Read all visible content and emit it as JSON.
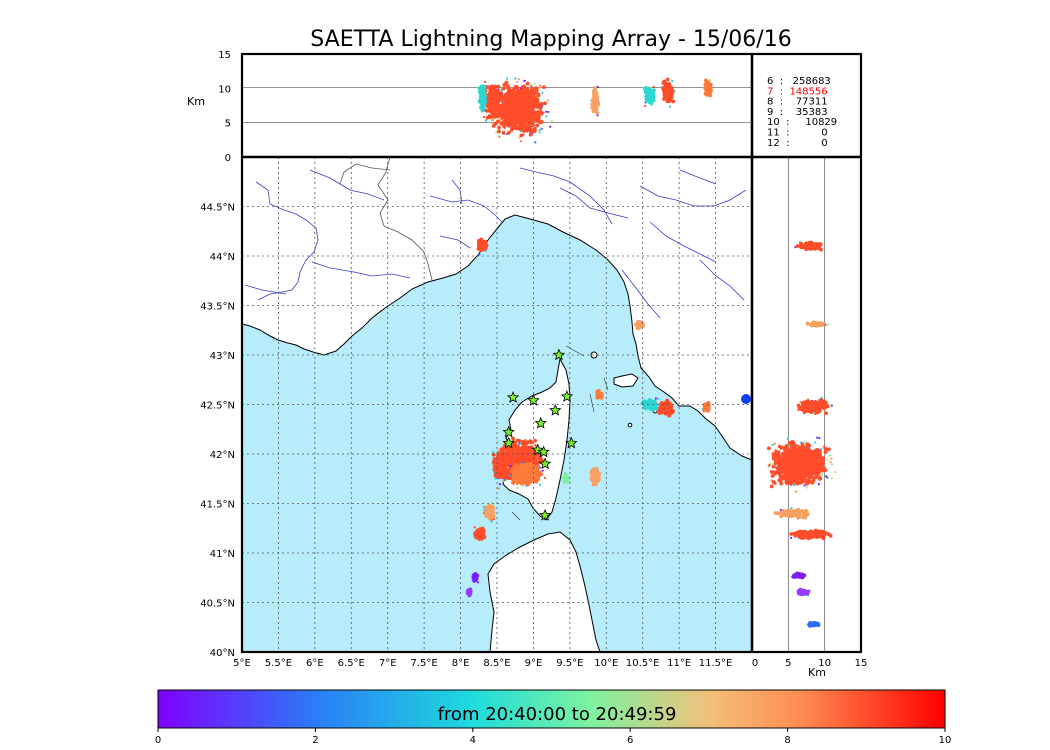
{
  "chart_data": {
    "type": "scatter",
    "title": "SAETTA Lightning Mapping Array - 15/06/16",
    "colors": {
      "sea": "#b7ecfb",
      "land": "#ffffff",
      "rivers": "#3a3ad6",
      "borders": "#555555",
      "grid": "#555555",
      "star_fill": "#7bf02a",
      "count_highlight": "#ff0000"
    },
    "map": {
      "x_ticks": [
        "5°E",
        "5.5°E",
        "6°E",
        "6.5°E",
        "7°E",
        "7.5°E",
        "8°E",
        "8.5°E",
        "9°E",
        "9.5°E",
        "10°E",
        "10.5°E",
        "11°E",
        "11.5°E"
      ],
      "y_ticks": [
        "40°N",
        "40.5°N",
        "41°N",
        "41.5°N",
        "42°N",
        "42.5°N",
        "43°N",
        "43.5°N",
        "44°N",
        "44.5°N"
      ],
      "lon_range": [
        5,
        12
      ],
      "lat_range": [
        40,
        45
      ],
      "grid": true,
      "station_marker": "star-icon",
      "stations": [
        {
          "lon": 9.35,
          "lat": 43.0
        },
        {
          "lon": 8.72,
          "lat": 42.57
        },
        {
          "lon": 9.0,
          "lat": 42.54
        },
        {
          "lon": 9.46,
          "lat": 42.58
        },
        {
          "lon": 9.1,
          "lat": 42.31
        },
        {
          "lon": 9.3,
          "lat": 42.44
        },
        {
          "lon": 8.66,
          "lat": 42.22
        },
        {
          "lon": 9.52,
          "lat": 42.11
        },
        {
          "lon": 8.66,
          "lat": 42.11
        },
        {
          "lon": 9.06,
          "lat": 42.04
        },
        {
          "lon": 9.14,
          "lat": 42.02
        },
        {
          "lon": 9.16,
          "lat": 41.9
        },
        {
          "lon": 9.16,
          "lat": 41.38
        }
      ],
      "clusters": [
        {
          "lon": 8.8,
          "lat": 41.93,
          "dlon": 0.35,
          "dlat": 0.24,
          "color": "#ff4c2a"
        },
        {
          "lon": 8.55,
          "lat": 41.87,
          "dlon": 0.12,
          "dlat": 0.15,
          "color": "#ff4c2a"
        },
        {
          "lon": 8.9,
          "lat": 41.8,
          "dlon": 0.25,
          "dlat": 0.12,
          "color": "#ff7a3a"
        },
        {
          "lon": 8.3,
          "lat": 44.1,
          "dlon": 0.08,
          "dlat": 0.08,
          "color": "#ff4c2a"
        },
        {
          "lon": 10.82,
          "lat": 42.46,
          "dlon": 0.12,
          "dlat": 0.09,
          "color": "#ff4c2a"
        },
        {
          "lon": 10.6,
          "lat": 42.5,
          "dlon": 0.12,
          "dlat": 0.06,
          "color": "#2dd6d0"
        },
        {
          "lon": 11.38,
          "lat": 42.47,
          "dlon": 0.06,
          "dlat": 0.05,
          "color": "#ff7a3a"
        },
        {
          "lon": 9.85,
          "lat": 41.77,
          "dlon": 0.07,
          "dlat": 0.1,
          "color": "#f7a060"
        },
        {
          "lon": 8.4,
          "lat": 41.41,
          "dlon": 0.08,
          "dlat": 0.09,
          "color": "#f7a060"
        },
        {
          "lon": 8.27,
          "lat": 41.19,
          "dlon": 0.08,
          "dlat": 0.08,
          "color": "#ff4c2a"
        },
        {
          "lon": 10.45,
          "lat": 43.31,
          "dlon": 0.07,
          "dlat": 0.05,
          "color": "#f7a060"
        },
        {
          "lon": 8.2,
          "lat": 40.75,
          "dlon": 0.04,
          "dlat": 0.05,
          "color": "#7a1eff"
        },
        {
          "lon": 8.12,
          "lat": 40.6,
          "dlon": 0.03,
          "dlat": 0.04,
          "color": "#9a3aff"
        },
        {
          "lon": 9.9,
          "lat": 42.6,
          "dlon": 0.05,
          "dlat": 0.05,
          "color": "#ff7a3a"
        },
        {
          "lon": 9.45,
          "lat": 41.75,
          "dlon": 0.05,
          "dlat": 0.05,
          "color": "#7ef2a0"
        }
      ]
    },
    "alt_lon": {
      "ylabel": "Km",
      "y_ticks": [
        "0",
        "5",
        "10",
        "15"
      ],
      "y_range": [
        0,
        15
      ],
      "clusters": [
        {
          "lon": 8.8,
          "alt": 7.0,
          "dlon": 0.42,
          "dalt": 4.5,
          "color": "#ff4c2a"
        },
        {
          "lon": 8.45,
          "alt": 8.0,
          "dlon": 0.12,
          "dalt": 3.0,
          "color": "#ff4c2a"
        },
        {
          "lon": 9.85,
          "alt": 8.0,
          "dlon": 0.05,
          "dalt": 2.5,
          "color": "#f7a060"
        },
        {
          "lon": 10.85,
          "alt": 9.5,
          "dlon": 0.1,
          "dalt": 2.0,
          "color": "#ff4c2a"
        },
        {
          "lon": 10.6,
          "alt": 9.0,
          "dlon": 0.08,
          "dalt": 1.5,
          "color": "#2dd6d0"
        },
        {
          "lon": 11.4,
          "alt": 10.0,
          "dlon": 0.06,
          "dalt": 1.5,
          "color": "#ff7a3a"
        },
        {
          "lon": 8.3,
          "alt": 8.5,
          "dlon": 0.05,
          "dalt": 2.5,
          "color": "#2dd6d0"
        }
      ]
    },
    "lat_alt": {
      "xlabel": "Km",
      "x_ticks": [
        "0",
        "5",
        "10",
        "15"
      ],
      "x_range": [
        0,
        15
      ],
      "clusters": [
        {
          "lat": 41.9,
          "alt": 6.5,
          "dlat": 0.25,
          "dalt": 4.5,
          "color": "#ff4c2a"
        },
        {
          "lat": 42.48,
          "alt": 8.5,
          "dlat": 0.08,
          "dalt": 2.5,
          "color": "#ff4c2a"
        },
        {
          "lat": 41.19,
          "alt": 8.0,
          "dlat": 0.05,
          "dalt": 3.0,
          "color": "#ff4c2a"
        },
        {
          "lat": 41.4,
          "alt": 5.5,
          "dlat": 0.05,
          "dalt": 2.5,
          "color": "#f7a060"
        },
        {
          "lat": 44.1,
          "alt": 8.0,
          "dlat": 0.05,
          "dalt": 2.0,
          "color": "#ff4c2a"
        },
        {
          "lat": 43.31,
          "alt": 9.0,
          "dlat": 0.03,
          "dalt": 1.5,
          "color": "#f7a060"
        },
        {
          "lat": 40.77,
          "alt": 6.5,
          "dlat": 0.03,
          "dalt": 1.0,
          "color": "#7a1eff"
        },
        {
          "lat": 40.6,
          "alt": 7.0,
          "dlat": 0.04,
          "dalt": 1.0,
          "color": "#9a3aff"
        },
        {
          "lat": 40.28,
          "alt": 8.5,
          "dlat": 0.02,
          "dalt": 1.0,
          "color": "#2a6aff"
        }
      ]
    },
    "counts": [
      {
        "label": "6  :   258683",
        "highlight": false
      },
      {
        "label": "7  :  148556",
        "highlight": true
      },
      {
        "label": "8  :    77311",
        "highlight": false
      },
      {
        "label": "9  :    35383",
        "highlight": false
      },
      {
        "label": "10  :     10829",
        "highlight": false
      },
      {
        "label": "11  :          0",
        "highlight": false
      },
      {
        "label": "12  :          0",
        "highlight": false
      }
    ],
    "colorbar": {
      "label": "from 20:40:00 to 20:49:59",
      "ticks": [
        "0",
        "2",
        "4",
        "6",
        "8",
        "10"
      ],
      "range": [
        0,
        10
      ]
    }
  }
}
